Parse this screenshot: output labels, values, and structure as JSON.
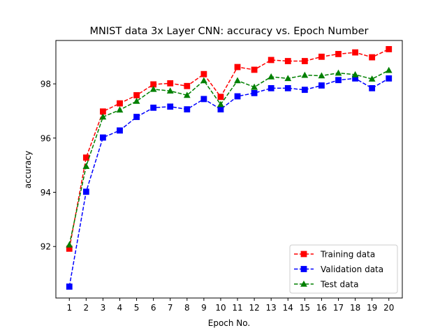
{
  "chart_data": {
    "type": "line",
    "title": "MNIST data 3x Layer CNN: accuracy vs. Epoch Number",
    "xlabel": "Epoch No.",
    "ylabel": "accuracy",
    "x": [
      1,
      2,
      3,
      4,
      5,
      6,
      7,
      8,
      9,
      10,
      11,
      12,
      13,
      14,
      15,
      16,
      17,
      18,
      19,
      20
    ],
    "xlim": [
      0.2,
      20.8
    ],
    "ylim": [
      90.1,
      99.6
    ],
    "yticks": [
      92,
      94,
      96,
      98
    ],
    "grid": false,
    "legend_position": "lower-right",
    "series": [
      {
        "name": "Training data",
        "color": "#ff0000",
        "marker": "square",
        "line_style": "dashed",
        "values": [
          91.92,
          95.28,
          96.98,
          97.28,
          97.58,
          97.98,
          98.02,
          97.92,
          98.36,
          97.52,
          98.62,
          98.52,
          98.88,
          98.84,
          98.84,
          99.0,
          99.1,
          99.16,
          98.98,
          99.28
        ]
      },
      {
        "name": "Validation data",
        "color": "#0000ff",
        "marker": "square",
        "line_style": "dashed",
        "values": [
          90.52,
          94.02,
          96.02,
          96.28,
          96.78,
          97.12,
          97.16,
          97.06,
          97.44,
          97.06,
          97.54,
          97.66,
          97.84,
          97.84,
          97.78,
          97.94,
          98.14,
          98.2,
          97.84,
          98.2
        ]
      },
      {
        "name": "Test data",
        "color": "#008000",
        "marker": "triangle",
        "line_style": "dashed",
        "values": [
          92.06,
          94.96,
          96.78,
          97.04,
          97.36,
          97.8,
          97.74,
          97.58,
          98.12,
          97.24,
          98.12,
          97.88,
          98.26,
          98.2,
          98.32,
          98.3,
          98.4,
          98.34,
          98.18,
          98.5
        ]
      }
    ]
  }
}
